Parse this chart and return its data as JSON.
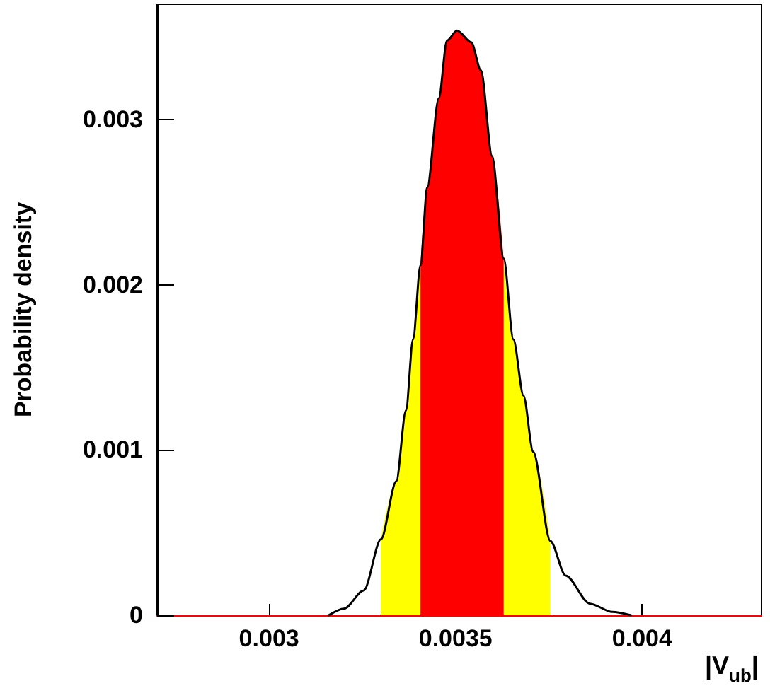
{
  "chart_data": {
    "type": "line",
    "xlabel": "|V$_{ub}$|",
    "ylabel": "Probability density",
    "xlim": [
      0.0027,
      0.00432
    ],
    "xticks": [
      0.003,
      0.0035,
      0.004
    ],
    "ylim": [
      0,
      0.0037
    ],
    "yticks": [
      0,
      0.001,
      0.002,
      0.003
    ],
    "marker": "none",
    "line_style": "solid",
    "series": [
      {
        "type": "area",
        "color": "#ffff00",
        "x": [
          0.0033,
          0.003341,
          0.003367,
          0.003386,
          0.003406
        ],
        "values": [
          0.00046,
          0.00081,
          0.00124,
          0.00167,
          0.00212
        ]
      },
      {
        "type": "area",
        "color": "#ffff00",
        "x": [
          0.003629,
          0.003655,
          0.003682,
          0.003708,
          0.003754
        ],
        "values": [
          0.00216,
          0.00167,
          0.00133,
          0.00099,
          0.00045
        ]
      },
      {
        "type": "area",
        "color": "#ff0000",
        "x": [
          0.003406,
          0.003424,
          0.003455,
          0.003477,
          0.003504,
          0.003542,
          0.003568,
          0.003598,
          0.003629
        ],
        "values": [
          0.00212,
          0.00259,
          0.00313,
          0.00348,
          0.00354,
          0.00347,
          0.0033,
          0.00278,
          0.00216
        ]
      },
      {
        "type": "line",
        "color": "#000000",
        "x": [
          0.00316,
          0.003201,
          0.003254,
          0.0033,
          0.003341,
          0.003367,
          0.003386,
          0.003406,
          0.003424,
          0.003455,
          0.003477,
          0.003504,
          0.003542,
          0.003568,
          0.003598,
          0.003629,
          0.003655,
          0.003682,
          0.003708,
          0.003754,
          0.003795,
          0.00386,
          0.00392,
          0.00397
        ],
        "values": [
          0,
          4e-05,
          0.00015,
          0.00046,
          0.00081,
          0.00124,
          0.00167,
          0.00212,
          0.00259,
          0.00313,
          0.00348,
          0.00354,
          0.00347,
          0.0033,
          0.00278,
          0.00216,
          0.00167,
          0.00133,
          0.00099,
          0.00045,
          0.00024,
          7e-05,
          2e-05,
          0
        ]
      }
    ]
  }
}
